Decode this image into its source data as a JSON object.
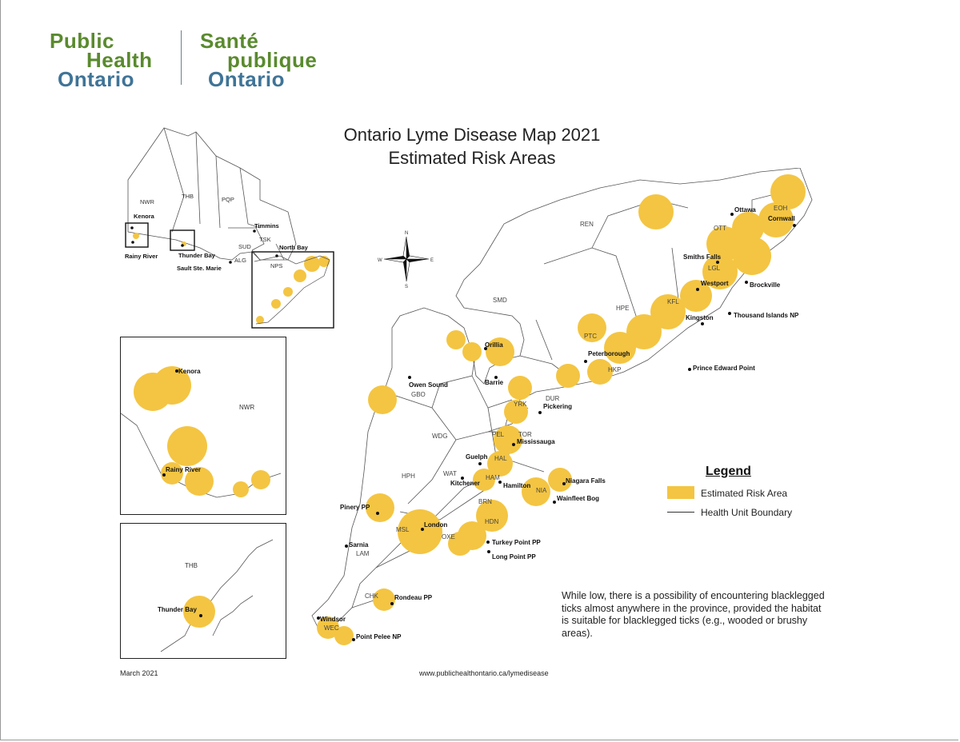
{
  "logo": {
    "en_line1": "Public",
    "en_line2": "Health",
    "en_line3": "Ontario",
    "fr_line1": "Santé",
    "fr_line2": "publique",
    "fr_line3": "Ontario",
    "colors": {
      "green": "#5a8a2e",
      "blue": "#3f7497"
    }
  },
  "title": {
    "line1": "Ontario Lyme Disease Map 2021",
    "line2": "Estimated Risk Areas"
  },
  "legend": {
    "title": "Legend",
    "risk_label": "Estimated Risk Area",
    "boundary_label": "Health Unit Boundary",
    "risk_color": "#f4c542"
  },
  "compass": {
    "n": "N",
    "s": "S",
    "e": "E",
    "w": "W"
  },
  "note": "While low, there is a possibility of encountering blacklegged ticks almost anywhere in the province, provided the habitat is suitable for blacklegged ticks (e.g., wooded or brushy areas).",
  "footer": {
    "date": "March 2021",
    "url": "www.publichealthontario.ca/lymedisease"
  },
  "overview_map": {
    "units": [
      "NWR",
      "THB",
      "PQP",
      "SUD",
      "TSK",
      "ALG",
      "NPS"
    ],
    "places": [
      "Kenora",
      "Rainy River",
      "Thunder Bay",
      "Timmins",
      "North Bay",
      "Sault Ste. Marie"
    ]
  },
  "kenora_inset": {
    "units": [
      "NWR"
    ],
    "places": [
      "Kenora",
      "Rainy River"
    ]
  },
  "thunder_bay_inset": {
    "units": [
      "THB"
    ],
    "places": [
      "Thunder Bay"
    ]
  },
  "main_map": {
    "health_units": [
      "REN",
      "EOH",
      "OTT",
      "LGL",
      "KFL",
      "HPE",
      "HKP",
      "PTC",
      "SMD",
      "GBO",
      "DUR",
      "YRK",
      "TOR",
      "PEL",
      "HAL",
      "WDG",
      "WAT",
      "HAM",
      "NIA",
      "BRN",
      "HDN",
      "OXE",
      "HPH",
      "MSL",
      "LAM",
      "CHK",
      "WEC"
    ],
    "places": [
      "Ottawa",
      "Cornwall",
      "Smiths Falls",
      "Westport",
      "Brockville",
      "Kingston",
      "Thousand Islands NP",
      "Peterborough",
      "Prince Edward Point",
      "Orillia",
      "Barrie",
      "Owen Sound",
      "Pickering",
      "Mississauga",
      "Guelph",
      "Kitchener",
      "Hamilton",
      "Niagara Falls",
      "Wainfleet Bog",
      "Pinery PP",
      "London",
      "Turkey Point PP",
      "Long Point PP",
      "Sarnia",
      "Rondeau PP",
      "Windsor",
      "Point Pelee NP"
    ]
  }
}
